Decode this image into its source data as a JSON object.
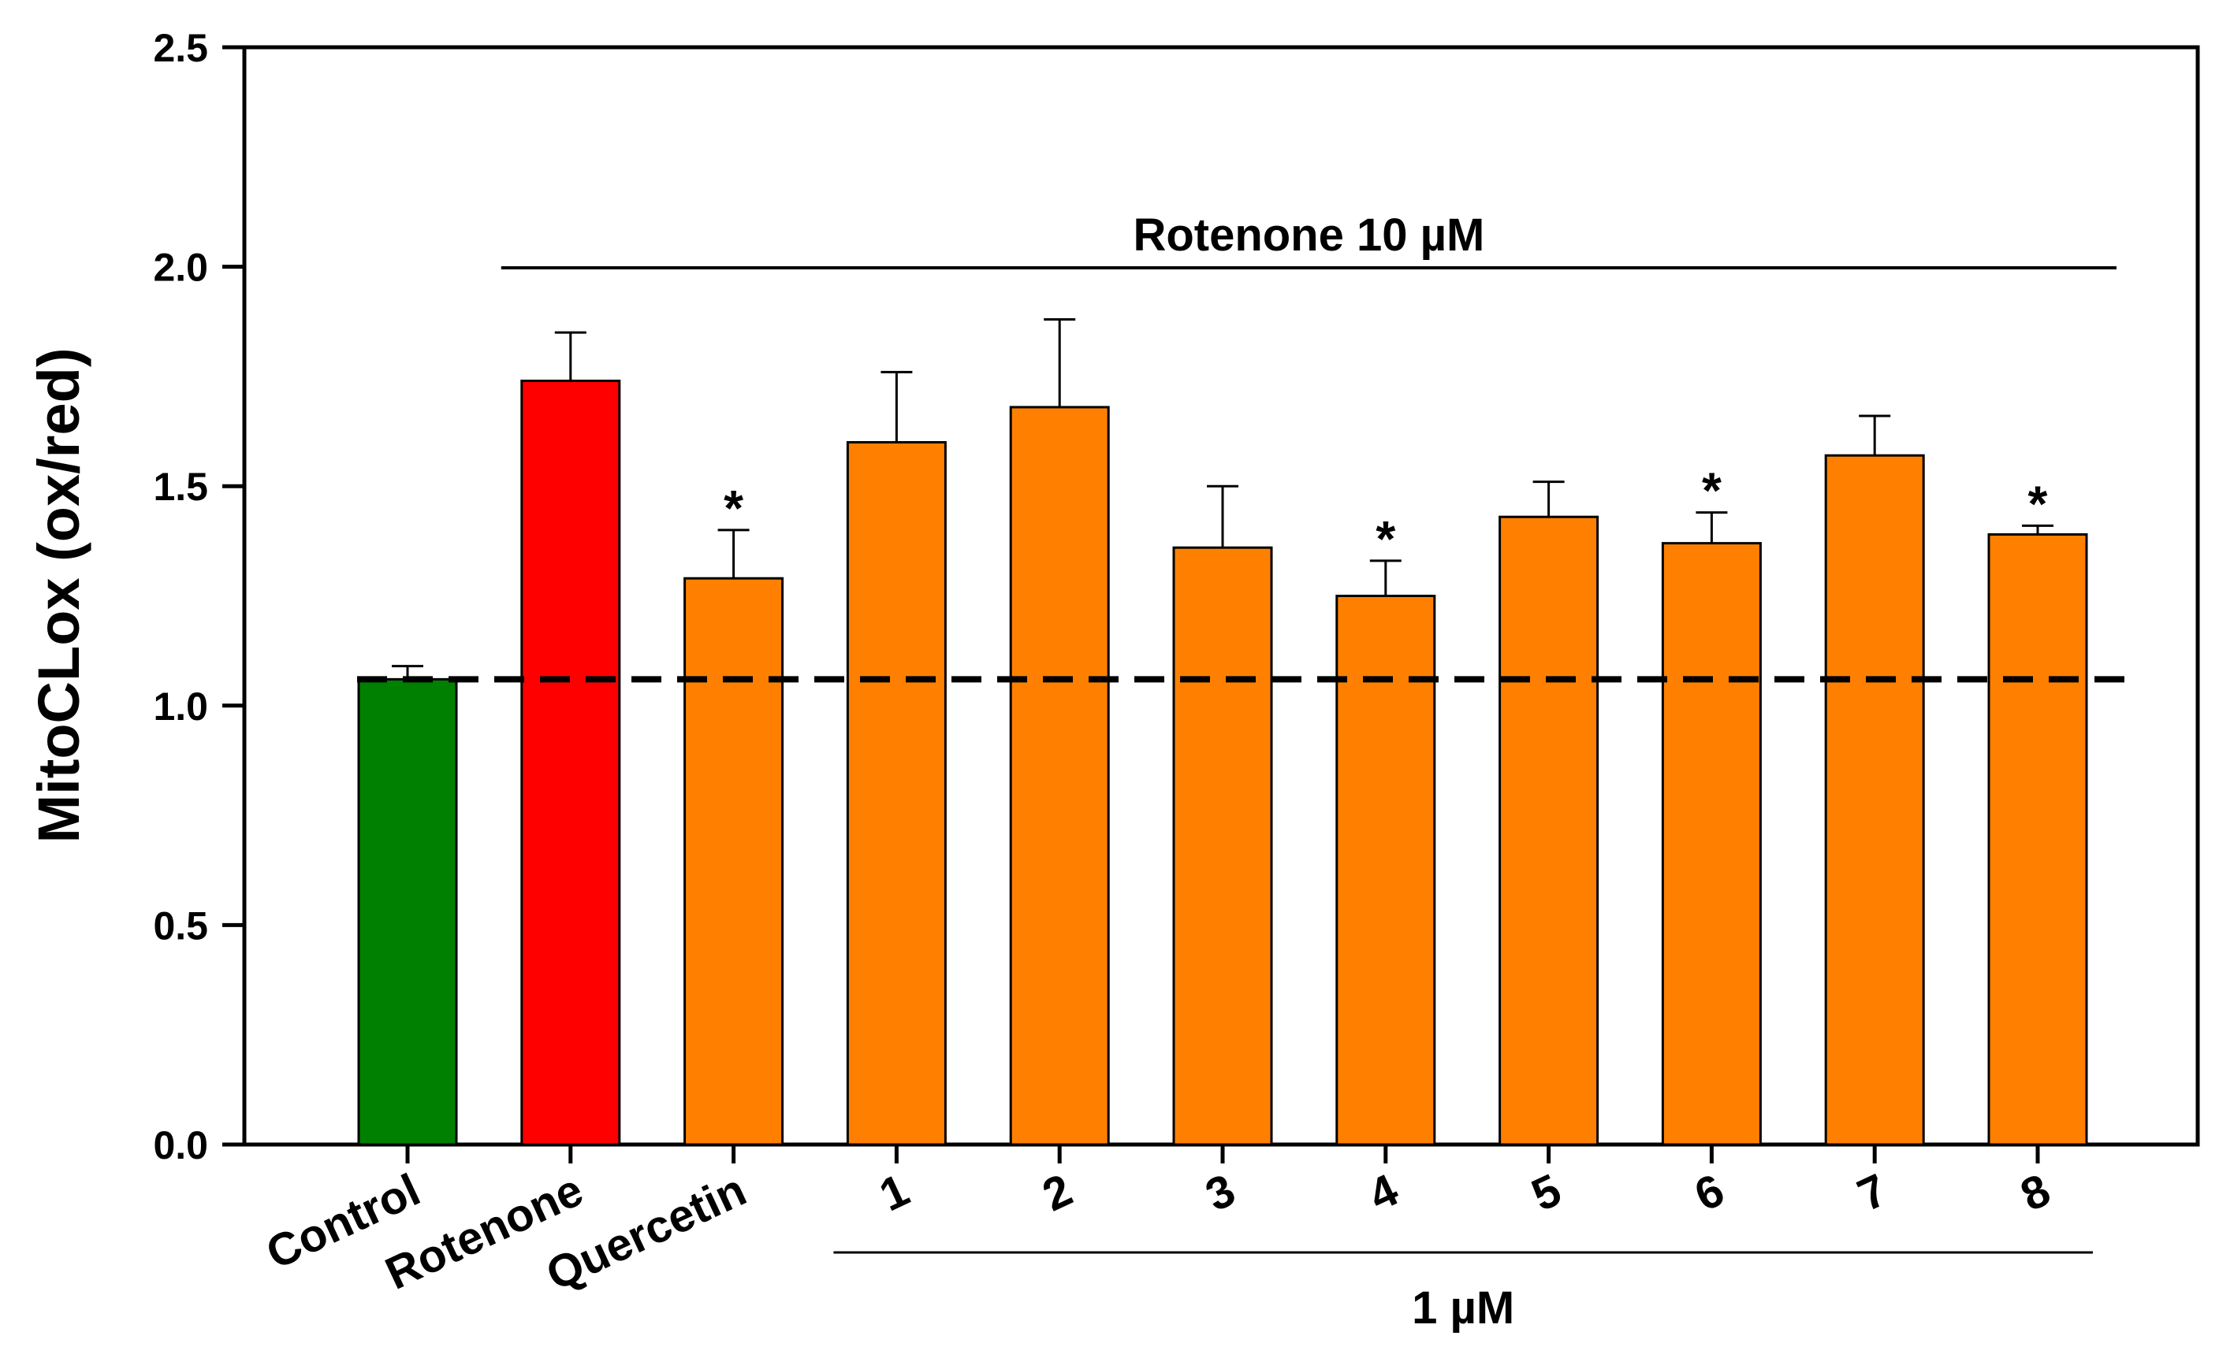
{
  "chart_data": {
    "type": "bar",
    "ylabel": "MitoCLox (ox/red)",
    "ylim": [
      0,
      2.5
    ],
    "yticks": [
      "0.0",
      "0.5",
      "1.0",
      "1.5",
      "2.0",
      "2.5"
    ],
    "ytick_values": [
      0,
      0.5,
      1.0,
      1.5,
      2.0,
      2.5
    ],
    "categories": [
      "Control",
      "Rotenone",
      "Quercetin",
      "1",
      "2",
      "3",
      "4",
      "5",
      "6",
      "7",
      "8"
    ],
    "values": [
      1.06,
      1.74,
      1.29,
      1.6,
      1.68,
      1.36,
      1.25,
      1.43,
      1.37,
      1.57,
      1.39
    ],
    "errors": [
      0.03,
      0.11,
      0.11,
      0.16,
      0.2,
      0.14,
      0.08,
      0.08,
      0.07,
      0.09,
      0.02
    ],
    "significant": [
      false,
      false,
      true,
      false,
      false,
      false,
      true,
      false,
      true,
      false,
      true
    ],
    "significance_marker": "*",
    "colors": [
      "#008000",
      "#ff0000",
      "#ff8000",
      "#ff8000",
      "#ff8000",
      "#ff8000",
      "#ff8000",
      "#ff8000",
      "#ff8000",
      "#ff8000",
      "#ff8000"
    ],
    "reference_line": 1.06,
    "group_annotations": [
      {
        "label": "Rotenone 10 µM",
        "from": "Rotenone",
        "to": "8",
        "placement": "top"
      },
      {
        "label": "1 µM",
        "from": "1",
        "to": "8",
        "placement": "below-axis"
      }
    ],
    "grid": false
  }
}
